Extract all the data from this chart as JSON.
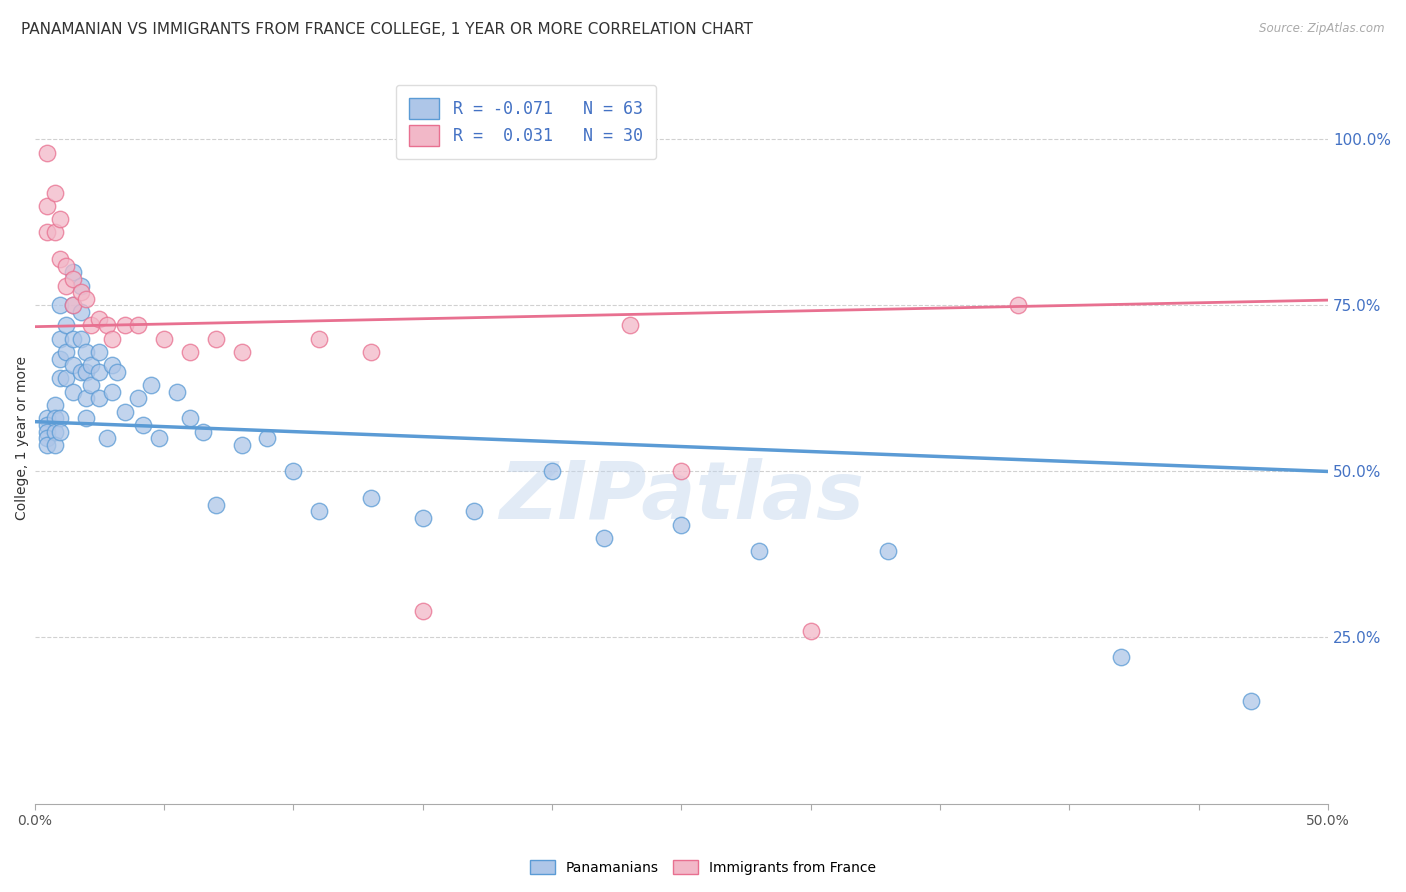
{
  "title": "PANAMANIAN VS IMMIGRANTS FROM FRANCE COLLEGE, 1 YEAR OR MORE CORRELATION CHART",
  "source": "Source: ZipAtlas.com",
  "ylabel": "College, 1 year or more",
  "xlim": [
    0.0,
    0.5
  ],
  "ylim": [
    0.0,
    1.1
  ],
  "xtick_values": [
    0.0,
    0.05,
    0.1,
    0.15,
    0.2,
    0.25,
    0.3,
    0.35,
    0.4,
    0.45,
    0.5
  ],
  "xtick_labels_show": {
    "0.0": "0.0%",
    "0.5": "50.0%"
  },
  "ytick_right_labels": [
    "100.0%",
    "75.0%",
    "50.0%",
    "25.0%"
  ],
  "ytick_right_values": [
    1.0,
    0.75,
    0.5,
    0.25
  ],
  "ytick_grid_values": [
    0.25,
    0.5,
    0.75,
    1.0
  ],
  "blue_scatter_x": [
    0.005,
    0.005,
    0.005,
    0.005,
    0.005,
    0.008,
    0.008,
    0.008,
    0.008,
    0.01,
    0.01,
    0.01,
    0.01,
    0.01,
    0.01,
    0.012,
    0.012,
    0.012,
    0.015,
    0.015,
    0.015,
    0.015,
    0.015,
    0.018,
    0.018,
    0.018,
    0.018,
    0.02,
    0.02,
    0.02,
    0.02,
    0.022,
    0.022,
    0.025,
    0.025,
    0.025,
    0.028,
    0.03,
    0.03,
    0.032,
    0.035,
    0.04,
    0.042,
    0.045,
    0.048,
    0.055,
    0.06,
    0.065,
    0.07,
    0.08,
    0.09,
    0.1,
    0.11,
    0.13,
    0.15,
    0.17,
    0.2,
    0.22,
    0.25,
    0.28,
    0.33,
    0.42,
    0.47
  ],
  "blue_scatter_y": [
    0.58,
    0.57,
    0.56,
    0.55,
    0.54,
    0.6,
    0.58,
    0.56,
    0.54,
    0.75,
    0.7,
    0.67,
    0.64,
    0.58,
    0.56,
    0.72,
    0.68,
    0.64,
    0.8,
    0.75,
    0.7,
    0.66,
    0.62,
    0.78,
    0.74,
    0.7,
    0.65,
    0.68,
    0.65,
    0.61,
    0.58,
    0.66,
    0.63,
    0.68,
    0.65,
    0.61,
    0.55,
    0.66,
    0.62,
    0.65,
    0.59,
    0.61,
    0.57,
    0.63,
    0.55,
    0.62,
    0.58,
    0.56,
    0.45,
    0.54,
    0.55,
    0.5,
    0.44,
    0.46,
    0.43,
    0.44,
    0.5,
    0.4,
    0.42,
    0.38,
    0.38,
    0.22,
    0.155
  ],
  "pink_scatter_x": [
    0.005,
    0.005,
    0.005,
    0.008,
    0.008,
    0.01,
    0.01,
    0.012,
    0.012,
    0.015,
    0.015,
    0.018,
    0.02,
    0.022,
    0.025,
    0.028,
    0.03,
    0.035,
    0.04,
    0.05,
    0.06,
    0.07,
    0.08,
    0.11,
    0.13,
    0.15,
    0.23,
    0.25,
    0.3,
    0.38
  ],
  "pink_scatter_y": [
    0.98,
    0.9,
    0.86,
    0.92,
    0.86,
    0.88,
    0.82,
    0.81,
    0.78,
    0.79,
    0.75,
    0.77,
    0.76,
    0.72,
    0.73,
    0.72,
    0.7,
    0.72,
    0.72,
    0.7,
    0.68,
    0.7,
    0.68,
    0.7,
    0.68,
    0.29,
    0.72,
    0.5,
    0.26,
    0.75
  ],
  "blue_line_x": [
    0.0,
    0.5
  ],
  "blue_line_y": [
    0.575,
    0.5
  ],
  "pink_line_x": [
    0.0,
    0.5
  ],
  "pink_line_y": [
    0.718,
    0.758
  ],
  "blue_color": "#5b9bd5",
  "pink_color": "#e87090",
  "blue_fill": "#aec6e8",
  "pink_fill": "#f2b8c8",
  "watermark": "ZIPatlas",
  "grid_color": "#cccccc",
  "title_fontsize": 11,
  "axis_fontsize": 10,
  "tick_fontsize": 10
}
